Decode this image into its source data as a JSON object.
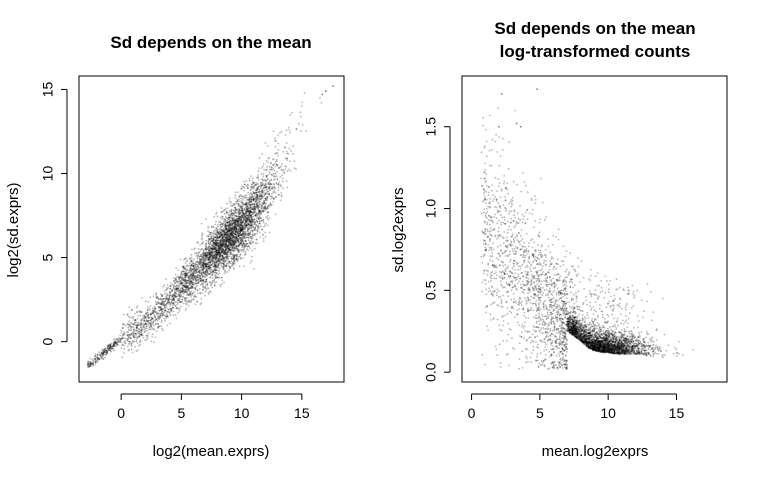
{
  "chart_data": [
    {
      "type": "scatter",
      "title": "Sd depends on the mean",
      "xlabel": "log2(mean.exprs)",
      "ylabel": "log2(sd.exprs)",
      "xlim": [
        -3.5,
        18.5
      ],
      "ylim": [
        -2.4,
        15.8
      ],
      "xticks": [
        "0",
        "5",
        "10",
        "15"
      ],
      "yticks": [
        "0",
        "5",
        "10",
        "15"
      ],
      "xtick_values": [
        0,
        5,
        10,
        15
      ],
      "ytick_values": [
        0,
        5,
        10,
        15
      ],
      "point_color": "#000000",
      "n_points_approx": 6000,
      "relationship": "monotonic increasing, approximately y = x - 3.3 for x > 3, flattening near 0 at low means",
      "x": [
        -2.6,
        -2.4,
        -2.2,
        -2.0,
        -1.8,
        -1.5,
        -1.2,
        -0.8,
        -0.4,
        0.0,
        0.5,
        1.0,
        1.5,
        2.0,
        2.5,
        3.0,
        3.5,
        4.0,
        4.5,
        5.0,
        5.5,
        6.0,
        6.5,
        7.0,
        7.5,
        8.0,
        8.5,
        9.0,
        9.5,
        10.0,
        10.5,
        11.0,
        11.5,
        12.0,
        12.5,
        13.0,
        13.5,
        14.0,
        14.5,
        15.0,
        16.5,
        17.0,
        17.5
      ],
      "y": [
        -1.4,
        -1.3,
        -1.1,
        -1.0,
        -0.9,
        -0.7,
        -0.5,
        -0.3,
        0.0,
        0.2,
        0.4,
        0.7,
        0.9,
        1.1,
        1.4,
        1.8,
        2.1,
        2.5,
        2.9,
        3.2,
        3.6,
        4.0,
        4.3,
        4.7,
        5.1,
        5.5,
        5.8,
        6.1,
        6.5,
        6.9,
        7.3,
        7.7,
        8.2,
        8.7,
        9.3,
        9.9,
        10.5,
        11.2,
        11.9,
        12.6,
        14.2,
        14.8,
        15.2
      ]
    },
    {
      "type": "scatter",
      "title": "Sd depends on the mean",
      "subtitle": "log-transformed counts",
      "xlabel": "mean.log2exprs",
      "ylabel": "sd.log2exprs",
      "xlim": [
        -0.7,
        18.7
      ],
      "ylim": [
        -0.06,
        1.81
      ],
      "xticks": [
        "0",
        "5",
        "10",
        "15"
      ],
      "yticks": [
        "0.0",
        "0.5",
        "1.0",
        "1.5"
      ],
      "xtick_values": [
        0,
        5,
        10,
        15
      ],
      "ytick_values": [
        0,
        0.5,
        1.0,
        1.5
      ],
      "point_color": "#000000",
      "n_points_approx": 6000,
      "relationship": "sd decreases with mean; dense cluster near mean 9, sd 0.15",
      "x": [
        0.5,
        1.0,
        1.5,
        2.0,
        2.5,
        3.0,
        3.5,
        4.0,
        5.0,
        6.0,
        7.0,
        8.0,
        8.5,
        9.0,
        9.5,
        10.0,
        10.5,
        11.0,
        12.0,
        13.0,
        14.0,
        15.0,
        16.0,
        17.0,
        17.5
      ],
      "y": [
        0.9,
        0.85,
        0.8,
        0.75,
        0.7,
        0.65,
        0.6,
        0.55,
        0.45,
        0.36,
        0.28,
        0.22,
        0.18,
        0.16,
        0.15,
        0.15,
        0.14,
        0.14,
        0.14,
        0.13,
        0.12,
        0.12,
        0.12,
        0.2,
        0.25
      ]
    }
  ]
}
